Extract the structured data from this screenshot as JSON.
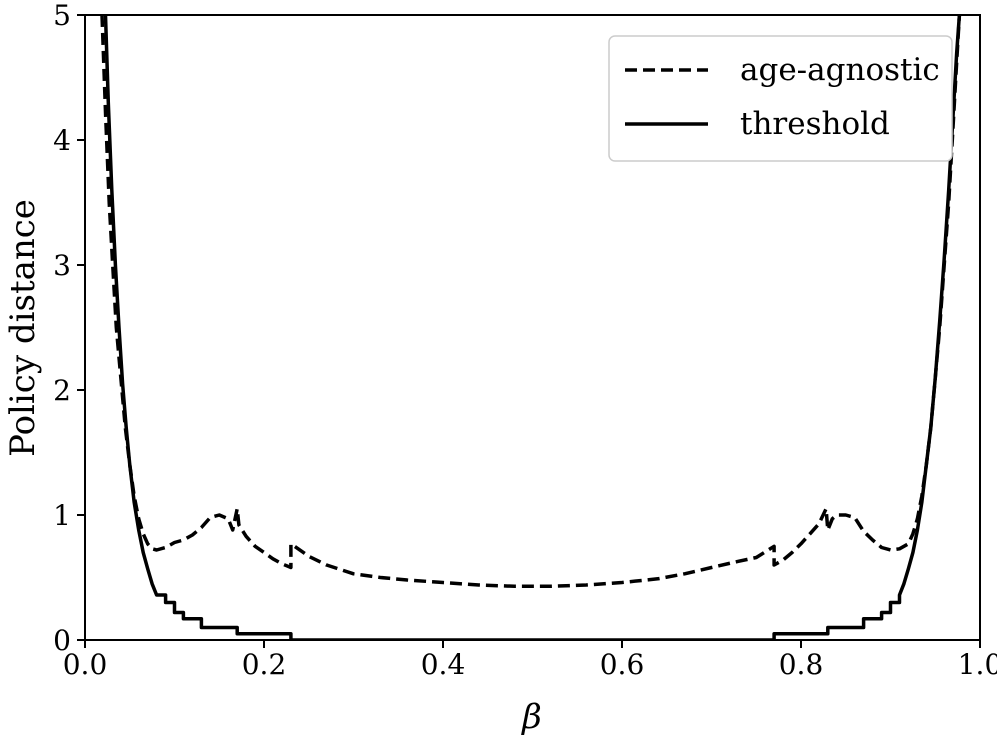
{
  "chart_data": {
    "type": "line",
    "title": "",
    "xlabel": "β",
    "ylabel": "Policy distance",
    "xlim": [
      0.0,
      1.0
    ],
    "ylim": [
      0,
      5
    ],
    "x_ticks": [
      "0.0",
      "0.2",
      "0.4",
      "0.6",
      "0.8",
      "1.0"
    ],
    "y_ticks": [
      "0",
      "1",
      "2",
      "3",
      "4",
      "5"
    ],
    "grid": false,
    "legend": {
      "position": "upper right",
      "entries": [
        {
          "label": "age-agnostic",
          "style": "dashed"
        },
        {
          "label": "threshold",
          "style": "solid"
        }
      ]
    },
    "series": [
      {
        "name": "age-agnostic",
        "style": "dashed",
        "color": "#000000",
        "x": [
          0.019,
          0.023,
          0.027,
          0.031,
          0.035,
          0.04,
          0.045,
          0.05,
          0.055,
          0.06,
          0.065,
          0.07,
          0.075,
          0.08,
          0.09,
          0.1,
          0.11,
          0.12,
          0.13,
          0.14,
          0.15,
          0.16,
          0.165,
          0.17,
          0.172,
          0.18,
          0.19,
          0.2,
          0.21,
          0.22,
          0.23,
          0.23,
          0.25,
          0.27,
          0.3,
          0.33,
          0.36,
          0.4,
          0.44,
          0.48,
          0.5,
          0.52,
          0.56,
          0.6,
          0.64,
          0.67,
          0.7,
          0.73,
          0.75,
          0.77,
          0.77,
          0.78,
          0.79,
          0.8,
          0.81,
          0.82,
          0.828,
          0.83,
          0.835,
          0.84,
          0.85,
          0.86,
          0.87,
          0.88,
          0.89,
          0.9,
          0.91,
          0.92,
          0.925,
          0.93,
          0.935,
          0.94,
          0.945,
          0.95,
          0.955,
          0.96,
          0.965,
          0.969,
          0.973,
          0.977,
          0.981
        ],
        "y": [
          5.0,
          4.2,
          3.5,
          3.0,
          2.5,
          2.1,
          1.7,
          1.4,
          1.15,
          0.97,
          0.85,
          0.77,
          0.73,
          0.72,
          0.74,
          0.78,
          0.8,
          0.84,
          0.9,
          0.98,
          1.0,
          0.97,
          0.88,
          1.05,
          0.92,
          0.83,
          0.75,
          0.7,
          0.65,
          0.61,
          0.58,
          0.77,
          0.67,
          0.6,
          0.53,
          0.5,
          0.48,
          0.46,
          0.44,
          0.43,
          0.43,
          0.43,
          0.44,
          0.46,
          0.49,
          0.53,
          0.58,
          0.63,
          0.66,
          0.75,
          0.6,
          0.64,
          0.7,
          0.77,
          0.85,
          0.93,
          1.05,
          0.88,
          0.97,
          1.0,
          1.0,
          0.98,
          0.87,
          0.8,
          0.74,
          0.72,
          0.73,
          0.77,
          0.85,
          0.97,
          1.15,
          1.4,
          1.7,
          2.1,
          2.5,
          3.0,
          3.5,
          4.0,
          4.5,
          5.0,
          5.2
        ]
      },
      {
        "name": "threshold",
        "style": "solid",
        "color": "#000000",
        "x": [
          0.022,
          0.026,
          0.03,
          0.034,
          0.038,
          0.042,
          0.046,
          0.05,
          0.055,
          0.06,
          0.065,
          0.07,
          0.075,
          0.08,
          0.09,
          0.09,
          0.1,
          0.1,
          0.11,
          0.11,
          0.13,
          0.13,
          0.17,
          0.17,
          0.23,
          0.23,
          0.77,
          0.77,
          0.83,
          0.83,
          0.87,
          0.87,
          0.89,
          0.89,
          0.9,
          0.9,
          0.91,
          0.91,
          0.915,
          0.92,
          0.925,
          0.93,
          0.935,
          0.94,
          0.945,
          0.95,
          0.955,
          0.96,
          0.965,
          0.97,
          0.974,
          0.978,
          0.981
        ],
        "y": [
          5.2,
          4.3,
          3.6,
          3.0,
          2.5,
          2.05,
          1.7,
          1.4,
          1.1,
          0.88,
          0.7,
          0.57,
          0.45,
          0.36,
          0.36,
          0.3,
          0.3,
          0.22,
          0.22,
          0.17,
          0.17,
          0.1,
          0.1,
          0.05,
          0.05,
          0.0,
          0.0,
          0.05,
          0.05,
          0.1,
          0.1,
          0.17,
          0.17,
          0.22,
          0.22,
          0.3,
          0.3,
          0.36,
          0.45,
          0.57,
          0.7,
          0.88,
          1.1,
          1.4,
          1.7,
          2.1,
          2.55,
          3.05,
          3.6,
          4.2,
          4.7,
          5.1,
          5.2
        ]
      }
    ]
  }
}
